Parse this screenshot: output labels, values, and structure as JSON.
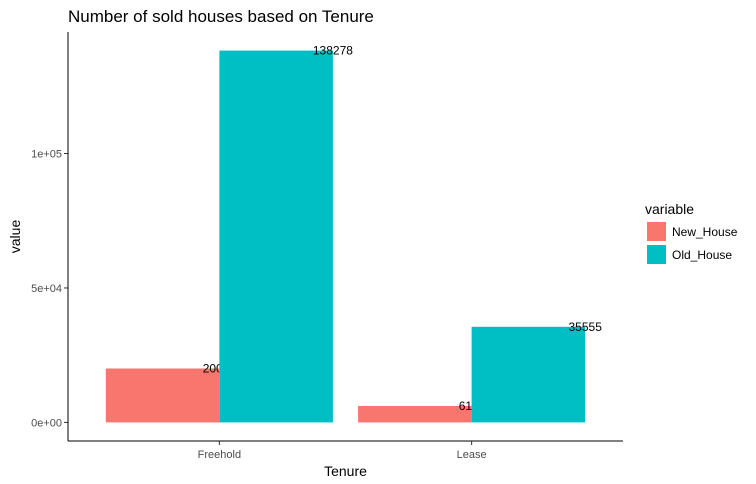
{
  "chart_data": {
    "type": "bar",
    "title": "Number of sold houses based on Tenure",
    "xlabel": "Tenure",
    "ylabel": "value",
    "categories": [
      "Freehold",
      "Lease"
    ],
    "series": [
      {
        "name": "New_House",
        "values": [
          20048,
          6116
        ],
        "color": "#F8766D"
      },
      {
        "name": "Old_House",
        "values": [
          138278,
          35555
        ],
        "color": "#00BFC4"
      }
    ],
    "y_ticks": [
      {
        "value": 0,
        "label": "0e+00"
      },
      {
        "value": 50000,
        "label": "5e+04"
      },
      {
        "value": 100000,
        "label": "1e+05"
      }
    ],
    "ylim": [
      -6914,
      145192
    ],
    "grid": false,
    "legend": {
      "title": "variable",
      "position": "right"
    }
  }
}
